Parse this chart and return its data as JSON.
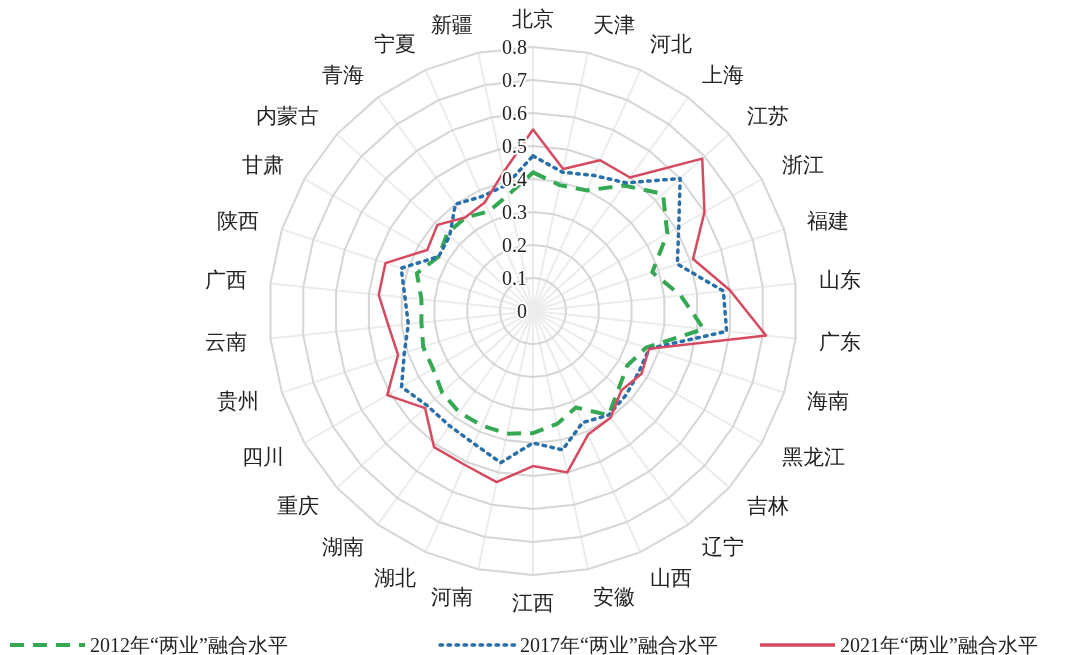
{
  "chart_data": {
    "type": "radar",
    "categories": [
      "北京",
      "天津",
      "河北",
      "上海",
      "江苏",
      "浙江",
      "福建",
      "山东",
      "广东",
      "海南",
      "黑龙江",
      "吉林",
      "辽宁",
      "山西",
      "安徽",
      "江西",
      "河南",
      "湖北",
      "湖南",
      "重庆",
      "四川",
      "贵州",
      "云南",
      "广西",
      "陕西",
      "甘肃",
      "内蒙古",
      "青海",
      "宁夏",
      "新疆"
    ],
    "series": [
      {
        "name": "2012年“两业”融合水平",
        "color": "#34a853",
        "line_style": "dashed",
        "values": [
          0.42,
          0.39,
          0.4,
          0.47,
          0.53,
          0.47,
          0.38,
          0.45,
          0.52,
          0.36,
          0.33,
          0.35,
          0.39,
          0.32,
          0.35,
          0.37,
          0.38,
          0.38,
          0.38,
          0.37,
          0.35,
          0.35,
          0.34,
          0.34,
          0.37,
          0.33,
          0.35,
          0.35,
          0.33,
          0.36
        ]
      },
      {
        "name": "2017年“两业”融合水平",
        "color": "#2a6fa8",
        "line_style": "dotted",
        "values": [
          0.47,
          0.43,
          0.45,
          0.48,
          0.6,
          0.51,
          0.46,
          0.58,
          0.59,
          0.37,
          0.37,
          0.38,
          0.39,
          0.37,
          0.43,
          0.4,
          0.47,
          0.44,
          0.43,
          0.43,
          0.46,
          0.41,
          0.38,
          0.39,
          0.42,
          0.33,
          0.34,
          0.4,
          0.38,
          0.39
        ]
      },
      {
        "name": "2021年“两业”融合水平",
        "color": "#d64a5f",
        "line_style": "solid",
        "values": [
          0.55,
          0.44,
          0.5,
          0.5,
          0.69,
          0.6,
          0.51,
          0.6,
          0.71,
          0.37,
          0.38,
          0.36,
          0.4,
          0.41,
          0.5,
          0.47,
          0.53,
          0.51,
          0.51,
          0.44,
          0.51,
          0.43,
          0.44,
          0.47,
          0.47,
          0.37,
          0.39,
          0.35,
          0.36,
          0.43
        ]
      }
    ],
    "ylim": [
      0,
      0.8
    ],
    "yticks": [
      0,
      0.1,
      0.2,
      0.3,
      0.4,
      0.5,
      0.6,
      0.7,
      0.8
    ],
    "grid": true,
    "legend": "bottom",
    "marker": "none"
  }
}
